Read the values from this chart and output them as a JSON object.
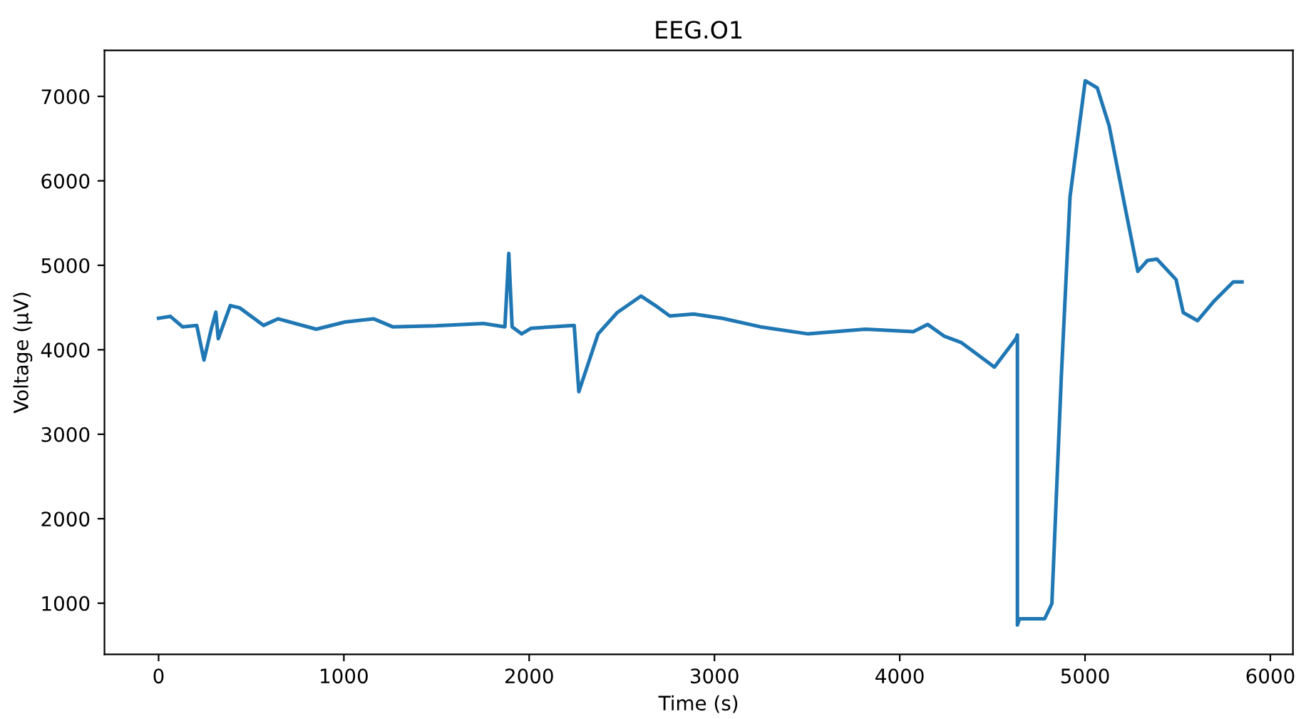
{
  "chart_data": {
    "type": "line",
    "title": "EEG.O1",
    "xlabel": "Time (s)",
    "ylabel": "Voltage (µV)",
    "xlim": [
      -292,
      6122
    ],
    "ylim": [
      395,
      7545
    ],
    "xticks": [
      0,
      1000,
      2000,
      3000,
      4000,
      5000,
      6000
    ],
    "yticks": [
      1000,
      2000,
      3000,
      4000,
      5000,
      6000,
      7000
    ],
    "grid": false,
    "legend": false,
    "series": [
      {
        "color": "#1f77b4",
        "x": [
          0,
          64,
          129,
          206,
          245,
          284,
          309,
          322,
          387,
          438,
          567,
          644,
          851,
          1005,
          1160,
          1263,
          1495,
          1753,
          1869,
          1890,
          1908,
          1959,
          2011,
          2243,
          2268,
          2372,
          2475,
          2604,
          2681,
          2759,
          2887,
          3042,
          3248,
          3506,
          3815,
          4073,
          4151,
          4241,
          4331,
          4511,
          4627,
          4635,
          4635,
          4646,
          4782,
          4821,
          4872,
          4919,
          5001,
          5066,
          5130,
          5220,
          5285,
          5336,
          5388,
          5491,
          5530,
          5607,
          5698,
          5800,
          5847
        ],
        "values": [
          4373,
          4395,
          4272,
          4289,
          3879,
          4244,
          4445,
          4131,
          4524,
          4496,
          4289,
          4367,
          4244,
          4328,
          4367,
          4272,
          4283,
          4311,
          4272,
          5140,
          4272,
          4188,
          4255,
          4289,
          3504,
          4188,
          4440,
          4636,
          4524,
          4400,
          4423,
          4373,
          4272,
          4188,
          4244,
          4215,
          4300,
          4160,
          4087,
          3795,
          4131,
          4176,
          742,
          815,
          815,
          995,
          3684,
          5812,
          7185,
          7100,
          6653,
          5644,
          4928,
          5056,
          5073,
          4832,
          4440,
          4345,
          4580,
          4804,
          4804
        ]
      }
    ]
  }
}
